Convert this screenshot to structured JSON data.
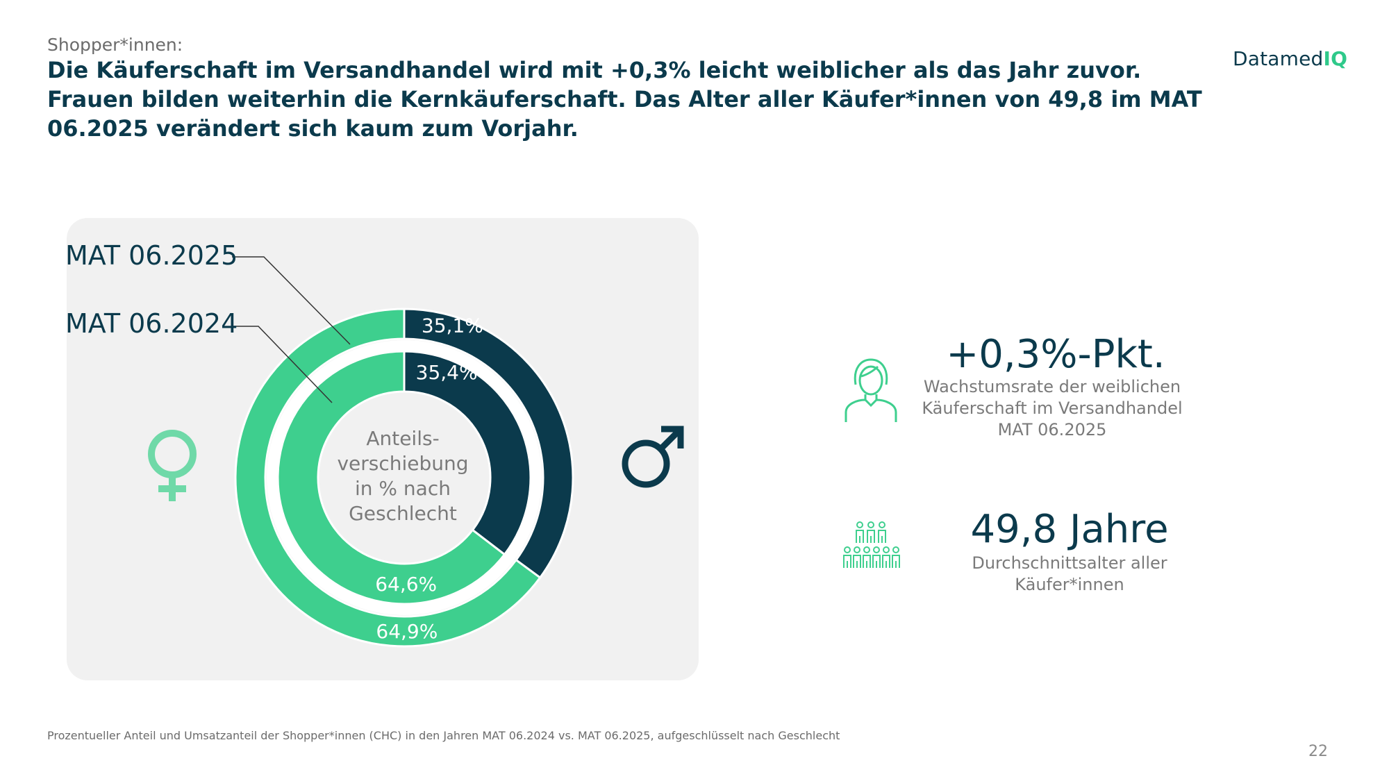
{
  "header": {
    "kicker": "Shopper*innen:",
    "headline": "Die Käuferschaft im Versandhandel wird mit +0,3% leicht weiblicher als das Jahr zuvor. Frauen bilden weiterhin die Kernkäuferschaft. Das Alter aller Käufer*innen von 49,8 im MAT 06.2025 verändert sich kaum zum Vorjahr."
  },
  "logo": {
    "text_main": "Datamed",
    "text_accent": "IQ"
  },
  "chart_data": {
    "type": "donut",
    "center_label": "Anteils-\nverschiebung\nin % nach\nGeschlecht",
    "categories": [
      "männlich",
      "weiblich"
    ],
    "series": [
      {
        "name": "MAT 06.2025",
        "ring": "outer",
        "values": [
          35.1,
          64.9
        ],
        "labels": [
          "35,1%",
          "64,9%"
        ]
      },
      {
        "name": "MAT 06.2024",
        "ring": "inner",
        "values": [
          35.4,
          64.6
        ],
        "labels": [
          "35,4%",
          "64,6%"
        ]
      }
    ],
    "colors": {
      "male": "#0b3a4c",
      "female": "#3ecf8e",
      "divider": "#ffffff"
    },
    "icons": {
      "female": "female-symbol-icon",
      "male": "male-symbol-icon"
    }
  },
  "stats": [
    {
      "value": "+0,3%-Pkt.",
      "desc_lines": [
        "Wachstumsrate der weiblichen",
        "Käuferschaft im Versandhandel",
        "MAT 06.2025"
      ],
      "icon": "woman-icon"
    },
    {
      "value": "49,8 Jahre",
      "desc_lines": [
        "Durchschnittsalter aller",
        "Käufer*innen"
      ],
      "icon": "people-group-icon"
    }
  ],
  "footnote": "Prozentueller Anteil und Umsatzanteil der Shopper*innen (CHC) in den Jahren MAT 06.2024 vs. MAT 06.2025, aufgeschlüsselt nach Geschlecht",
  "page_number": "22"
}
